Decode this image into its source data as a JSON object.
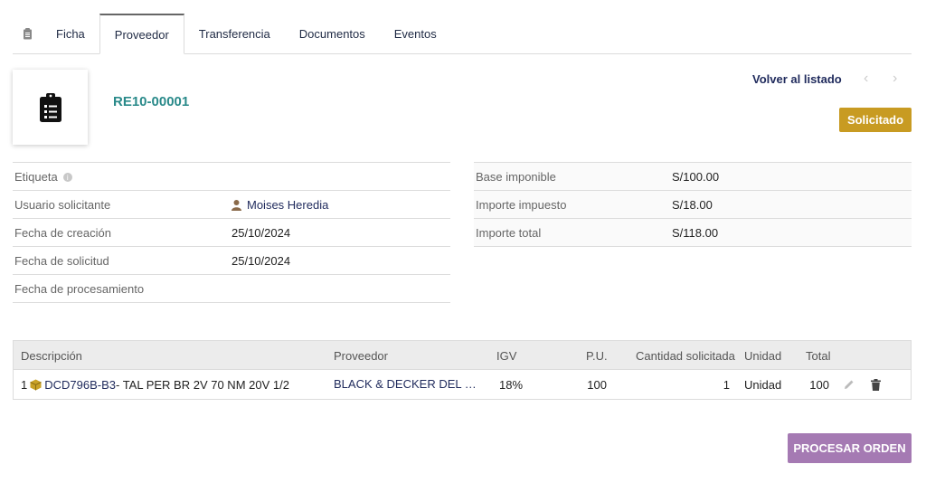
{
  "tabs": [
    {
      "label": "Ficha",
      "active": false
    },
    {
      "label": "Proveedor",
      "active": true
    },
    {
      "label": "Transferencia",
      "active": false
    },
    {
      "label": "Documentos",
      "active": false
    },
    {
      "label": "Eventos",
      "active": false
    }
  ],
  "header": {
    "doc_id": "RE10-00001",
    "back_label": "Volver al listado",
    "status": "Solicitado",
    "status_color": "#c89b22"
  },
  "details": {
    "etiqueta": {
      "label": "Etiqueta",
      "value": ""
    },
    "usuario": {
      "label": "Usuario solicitante",
      "value": "Moises Heredia"
    },
    "fecha_creacion": {
      "label": "Fecha de creación",
      "value": "25/10/2024"
    },
    "fecha_solicitud": {
      "label": "Fecha de solicitud",
      "value": "25/10/2024"
    },
    "fecha_procesamiento": {
      "label": "Fecha de procesamiento",
      "value": ""
    }
  },
  "totals": {
    "base": {
      "label": "Base imponible",
      "value": "S/100.00"
    },
    "impuesto": {
      "label": "Importe impuesto",
      "value": "S/18.00"
    },
    "total": {
      "label": "Importe total",
      "value": "S/118.00"
    }
  },
  "lines": {
    "headers": {
      "descripcion": "Descripción",
      "proveedor": "Proveedor",
      "igv": "IGV",
      "pu": "P.U.",
      "cantidad": "Cantidad solicitada",
      "unidad": "Unidad",
      "total": "Total"
    },
    "rows": [
      {
        "num": "1",
        "ref": "DCD796B-B3",
        "desc": " - TAL PER BR 2V 70 NM 20V 1/2",
        "proveedor": "BLACK & DECKER DEL PERU S.A.",
        "igv": "18%",
        "pu": "100",
        "cantidad": "1",
        "unidad": "Unidad",
        "total": "100"
      }
    ]
  },
  "actions": {
    "process_label": "PROCESAR ORDEN",
    "process_color": "#a57ab3"
  }
}
